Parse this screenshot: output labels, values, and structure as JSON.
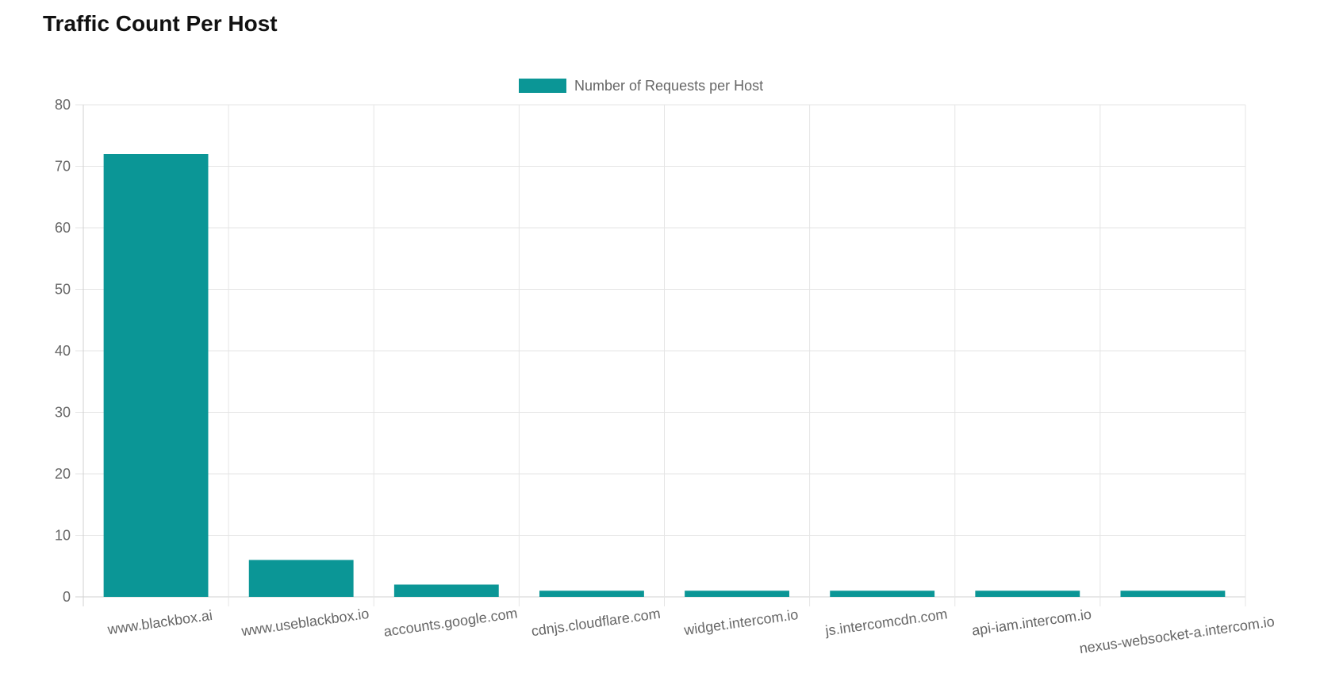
{
  "page": {
    "title": "Traffic Count Per Host"
  },
  "chart_data": {
    "type": "bar",
    "title": "Traffic Count Per Host",
    "xlabel": "",
    "ylabel": "",
    "categories": [
      "www.blackbox.ai",
      "www.useblackbox.io",
      "accounts.google.com",
      "cdnjs.cloudflare.com",
      "widget.intercom.io",
      "js.intercomcdn.com",
      "api-iam.intercom.io",
      "nexus-websocket-a.intercom.io"
    ],
    "series": [
      {
        "name": "Number of Requests per Host",
        "values": [
          72,
          6,
          2,
          1,
          1,
          1,
          1,
          1
        ],
        "color": "#0b9696"
      }
    ],
    "ylim": [
      0,
      80
    ],
    "yticks": [
      0,
      10,
      20,
      30,
      40,
      50,
      60,
      70,
      80
    ],
    "grid": true,
    "legend_position": "top-center",
    "colors": {
      "bar": "#0b9696",
      "grid": "#e5e5e5",
      "axis": "#d0d0d0",
      "tick_text": "#666666"
    }
  }
}
